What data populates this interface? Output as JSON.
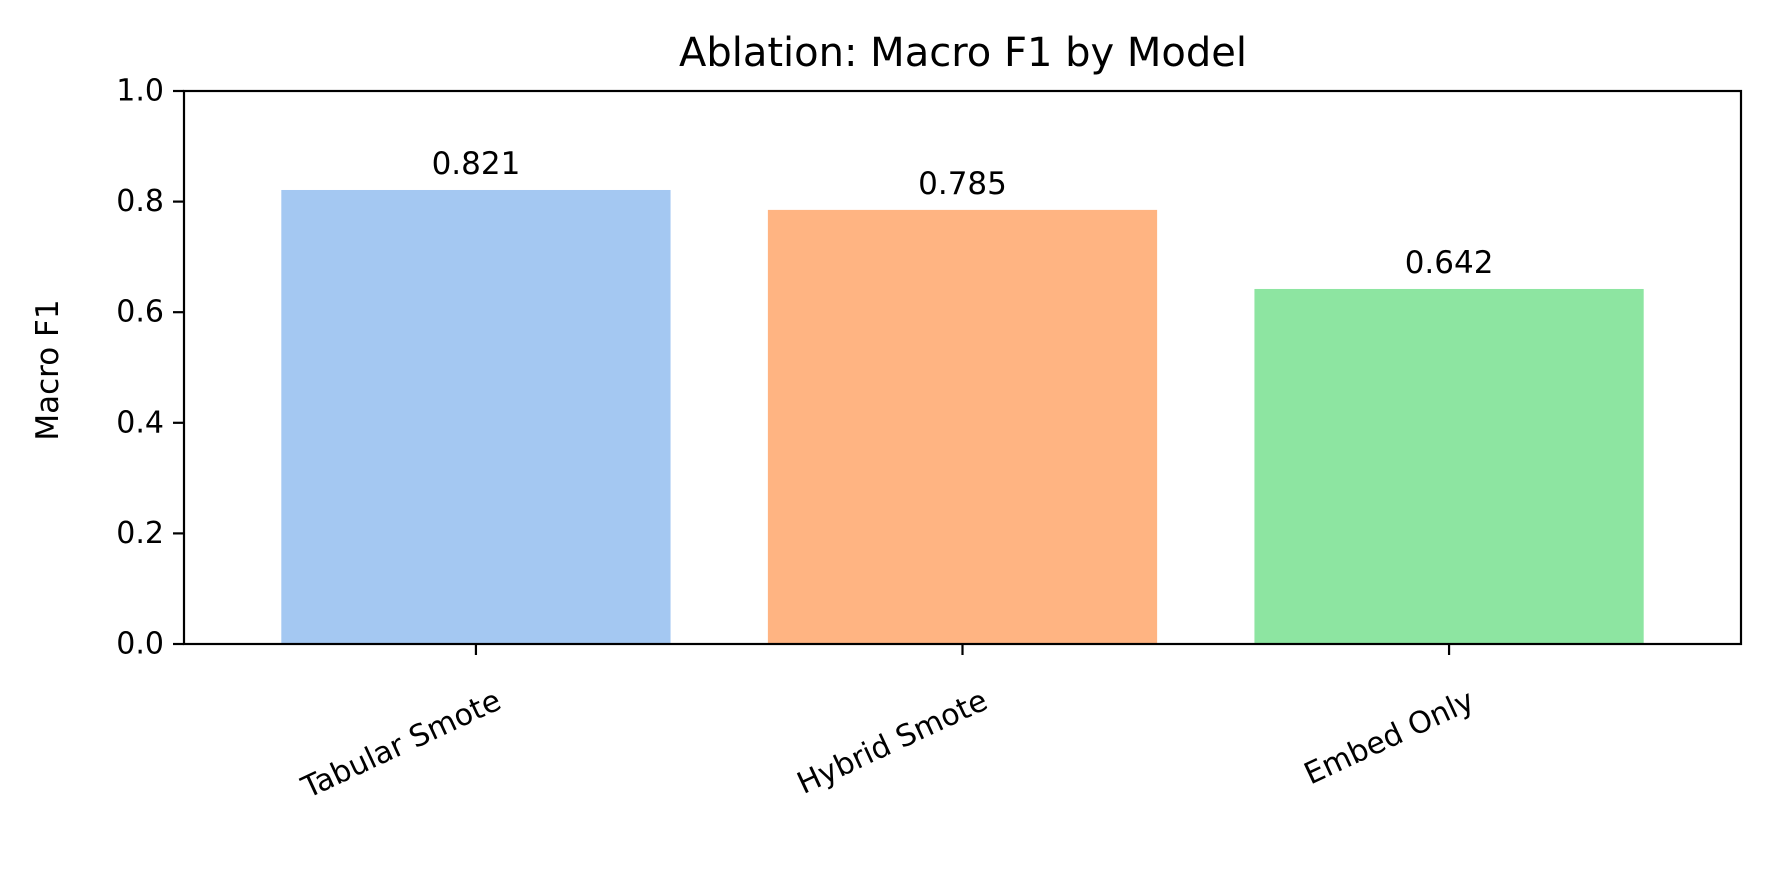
{
  "chart_data": {
    "type": "bar",
    "title": "Ablation: Macro F1 by Model",
    "xlabel": "",
    "ylabel": "Macro F1",
    "categories": [
      "Tabular Smote",
      "Hybrid Smote",
      "Embed Only"
    ],
    "values": [
      0.821,
      0.785,
      0.642
    ],
    "value_labels": [
      "0.821",
      "0.785",
      "0.642"
    ],
    "colors": [
      "#a4c8f2",
      "#ffb482",
      "#8de5a1"
    ],
    "ylim": [
      0,
      1
    ],
    "yticks": [
      0,
      0.2,
      0.4,
      0.6,
      0.8,
      1
    ],
    "ytick_labels": [
      "0.0",
      "0.2",
      "0.4",
      "0.6",
      "0.8",
      "1.0"
    ],
    "grid": false,
    "legend": "none",
    "xtick_rotation": "rotated ~25 degrees"
  }
}
